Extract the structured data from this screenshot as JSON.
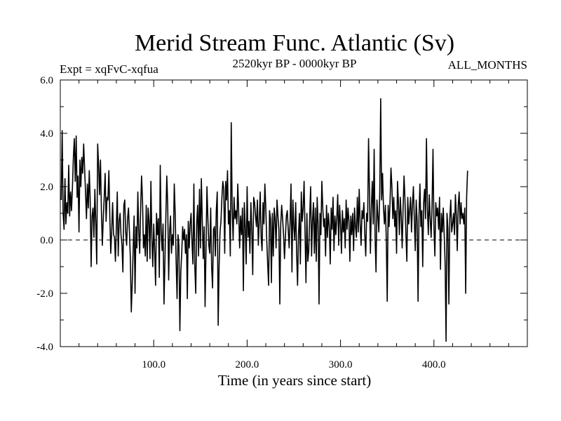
{
  "chart_data": {
    "type": "line",
    "title": "Merid Stream Func. Atlantic (Sv)",
    "subtitle_left": "Expt = xqFvC-xqfua",
    "subtitle_center": "2520kyr BP - 0000kyr BP",
    "subtitle_right": "ALL_MONTHS",
    "xlabel": "Time (in years since start)",
    "ylabel": "",
    "xlim": [
      0,
      500
    ],
    "ylim": [
      -4.0,
      6.0
    ],
    "x_ticks": [
      100,
      200,
      300,
      400
    ],
    "x_tick_labels": [
      "100.0",
      "200.0",
      "300.0",
      "400.0"
    ],
    "y_ticks": [
      -4,
      -2,
      0,
      2,
      4,
      6
    ],
    "y_tick_labels": [
      "-4.0",
      "-2.0",
      "0.0",
      "2.0",
      "4.0",
      "6.0"
    ],
    "x_minor_step": 20,
    "y_minor_step": 1,
    "reference_line": {
      "y": 0,
      "style": "dashed"
    },
    "series": [
      {
        "name": "Merid Stream Func. Atlantic",
        "x_start": 1,
        "x_step": 1,
        "values": [
          1.5,
          4.1,
          1.0,
          0.4,
          2.3,
          0.6,
          1.4,
          1.0,
          2.8,
          0.9,
          1.8,
          1.1,
          2.0,
          3.1,
          3.8,
          2.2,
          3.9,
          1.6,
          2.4,
          0.3,
          3.0,
          2.0,
          3.1,
          2.5,
          3.6,
          2.7,
          1.8,
          0.8,
          2.1,
          1.2,
          2.6,
          1.5,
          -1.0,
          0.9,
          1.2,
          0.1,
          1.9,
          0.6,
          -0.9,
          3.6,
          2.8,
          1.7,
          3.0,
          1.1,
          -0.2,
          0.8,
          1.6,
          2.5,
          0.7,
          1.6,
          1.5,
          2.6,
          0.9,
          -0.5,
          0.3,
          1.4,
          0.2,
          0.1,
          -0.8,
          0.5,
          1.8,
          -0.6,
          0.7,
          1.0,
          0.2,
          -0.2,
          -1.2,
          1.3,
          1.5,
          0.3,
          -0.2,
          0.8,
          1.2,
          0.3,
          -0.7,
          -2.7,
          -1.6,
          -0.4,
          0.9,
          -2.0,
          0.5,
          -0.3,
          1.8,
          0.3,
          -0.5,
          1.2,
          2.4,
          1.5,
          -0.3,
          0.2,
          -0.6,
          1.3,
          -0.8,
          1.2,
          0.7,
          -0.7,
          2.2,
          0.1,
          -1.0,
          0.6,
          -0.4,
          -1.7,
          1.0,
          0.2,
          0.8,
          -1.4,
          2.8,
          0.3,
          -0.4,
          0.6,
          -2.4,
          -0.8,
          0.9,
          2.4,
          1.3,
          -1.5,
          0.3,
          0.9,
          -0.5,
          0.2,
          -0.2,
          2.1,
          1.0,
          -0.8,
          -2.2,
          0.2,
          -0.2,
          -3.4,
          -1.2,
          -0.5,
          0.5,
          0.0,
          0.4,
          -0.5,
          0.2,
          -2.2,
          0.7,
          -0.3,
          0.6,
          1.0,
          -0.1,
          -0.9,
          2.1,
          -1.0,
          -2.0,
          0.6,
          1.3,
          -0.6,
          1.9,
          -0.3,
          2.3,
          0.7,
          -0.7,
          0.5,
          -2.5,
          -0.3,
          2.0,
          0.8,
          -0.2,
          -0.5,
          1.2,
          -1.0,
          -1.8,
          0.4,
          0.5,
          -0.6,
          1.1,
          1.8,
          -3.2,
          -1.0,
          0.3,
          0.7,
          1.6,
          2.2,
          1.9,
          -0.5,
          2.2,
          1.5,
          2.6,
          0.6,
          1.1,
          -0.6,
          4.4,
          1.2,
          0.0,
          1.6,
          0.8,
          1.1,
          0.6,
          2.1,
          1.0,
          -0.3,
          0.9,
          0.2,
          1.2,
          -1.9,
          1.4,
          0.5,
          -0.9,
          2.0,
          0.1,
          0.7,
          -0.5,
          1.4,
          0.4,
          -1.3,
          1.6,
          1.4,
          0.9,
          0.5,
          1.5,
          -0.2,
          0.7,
          1.8,
          0.1,
          -0.4,
          1.4,
          0.6,
          2.1,
          1.2,
          0.0,
          -0.9,
          -1.7,
          1.1,
          0.8,
          -1.6,
          1.0,
          -0.6,
          1.2,
          0.8,
          -0.3,
          1.5,
          0.9,
          0.4,
          -2.4,
          0.6,
          1.3,
          0.8,
          0.2,
          -0.7,
          0.1,
          0.9,
          1.1,
          0.4,
          -0.3,
          0.7,
          2.1,
          -1.2,
          1.5,
          0.5,
          0.0,
          1.4,
          -0.5,
          -1.7,
          0.2,
          1.0,
          -0.9,
          1.8,
          0.7,
          1.2,
          2.2,
          0.3,
          -1.6,
          1.0,
          -0.8,
          -0.4,
          0.9,
          2.0,
          -0.6,
          0.7,
          1.4,
          -0.5,
          1.2,
          -0.8,
          1.6,
          0.6,
          -2.4,
          1.0,
          0.2,
          2.2,
          1.2,
          0.5,
          0.8,
          -0.6,
          1.3,
          0.1,
          1.0,
          0.5,
          -0.9,
          1.2,
          0.4,
          1.6,
          -0.4,
          0.9,
          0.2,
          0.8,
          1.7,
          -0.2,
          1.3,
          0.6,
          -0.5,
          1.1,
          0.3,
          0.8,
          -0.3,
          1.5,
          0.4,
          1.2,
          0.7,
          -0.8,
          0.9,
          0.2,
          1.0,
          -0.4,
          1.2,
          0.5,
          0.1,
          1.6,
          0.3,
          1.9,
          0.6,
          -0.2,
          1.1,
          0.8,
          1.4,
          0.2,
          -0.6,
          1.0,
          0.7,
          3.8,
          1.8,
          -0.5,
          1.2,
          2.2,
          0.6,
          3.4,
          0.1,
          -1.2,
          1.5,
          0.9,
          0.3,
          1.8,
          5.3,
          1.5,
          2.5,
          1.2,
          0.6,
          1.3,
          0.0,
          -2.3,
          1.3,
          0.5,
          1.4,
          2.7,
          2.0,
          0.8,
          1.6,
          0.5,
          1.1,
          -0.5,
          2.2,
          1.4,
          0.2,
          1.6,
          0.9,
          -0.3,
          1.2,
          2.4,
          1.5,
          0.2,
          -0.8,
          1.6,
          0.6,
          1.1,
          1.6,
          0.3,
          1.3,
          2.0,
          0.8,
          -0.4,
          1.5,
          0.7,
          -2.3,
          0.9,
          2.1,
          0.5,
          1.1,
          -1.0,
          1.4,
          1.9,
          0.8,
          3.8,
          1.2,
          0.2,
          1.7,
          0.8,
          0.1,
          1.3,
          3.4,
          0.5,
          -0.6,
          1.4,
          0.9,
          1.2,
          0.4,
          1.6,
          -1.1,
          1.0,
          0.3,
          1.2,
          0.2,
          -0.9,
          -3.8,
          1.0,
          0.4,
          -2.4,
          0.8,
          1.5,
          0.3,
          0.6,
          1.0,
          0.2,
          1.7,
          0.9,
          -0.4,
          1.3,
          1.8,
          0.6,
          1.4,
          0.8,
          1.0,
          0.6,
          1.2,
          -2.0,
          1.6,
          2.6
        ]
      }
    ]
  }
}
